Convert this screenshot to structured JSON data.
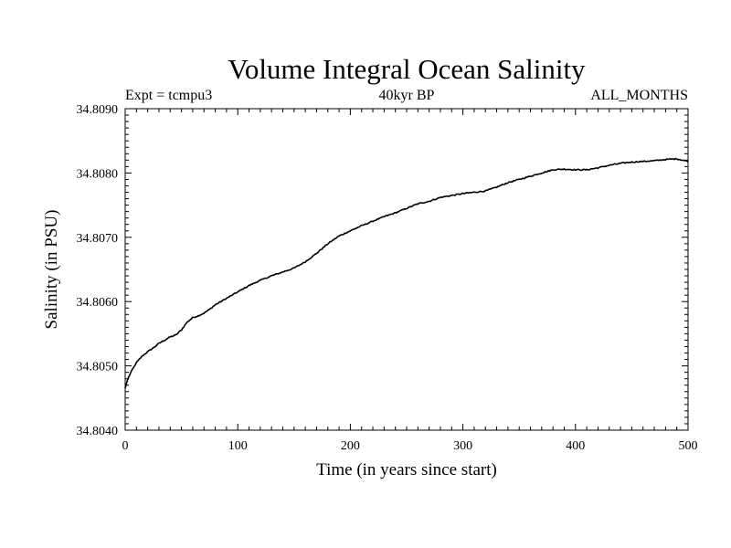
{
  "chart_data": {
    "type": "line",
    "title": "Volume Integral Ocean Salinity",
    "subtitle_left": "Expt = tcmpu3",
    "subtitle_center": "40kyr BP",
    "subtitle_right": "ALL_MONTHS",
    "xlabel": "Time (in years since start)",
    "ylabel": "Salinity (in PSU)",
    "xlim": [
      0,
      500
    ],
    "ylim": [
      34.804,
      34.809
    ],
    "x_ticks": [
      0,
      100,
      200,
      300,
      400,
      500
    ],
    "x_tick_labels": [
      "0",
      "100",
      "200",
      "300",
      "400",
      "500"
    ],
    "y_ticks": [
      34.804,
      34.805,
      34.806,
      34.807,
      34.808,
      34.809
    ],
    "y_tick_labels": [
      "34.8040",
      "34.8050",
      "34.8060",
      "34.8070",
      "34.8080",
      "34.8090"
    ],
    "grid": false,
    "line_color": "#000000",
    "series": [
      {
        "x": [
          0,
          2,
          5,
          10,
          15,
          20,
          25,
          30,
          35,
          40,
          45,
          50,
          55,
          60,
          65,
          70,
          75,
          80,
          90,
          100,
          110,
          120,
          130,
          140,
          150,
          160,
          170,
          180,
          190,
          200,
          210,
          220,
          230,
          240,
          250,
          260,
          270,
          280,
          290,
          300,
          310,
          320,
          330,
          340,
          350,
          360,
          370,
          380,
          390,
          400,
          410,
          420,
          430,
          440,
          450,
          460,
          470,
          480,
          490,
          500
        ],
        "y": [
          34.80465,
          34.80478,
          34.8049,
          34.80505,
          34.80515,
          34.80522,
          34.80528,
          34.80535,
          34.8054,
          34.80545,
          34.80548,
          34.80556,
          34.80568,
          34.80575,
          34.80578,
          34.80582,
          34.80588,
          34.80595,
          34.80605,
          34.80615,
          34.80625,
          34.80633,
          34.8064,
          34.80646,
          34.80652,
          34.80662,
          34.80675,
          34.8069,
          34.80702,
          34.8071,
          34.80718,
          34.80725,
          34.80732,
          34.80738,
          34.80745,
          34.80752,
          34.80756,
          34.80762,
          34.80765,
          34.80768,
          34.8077,
          34.80772,
          34.80778,
          34.80785,
          34.8079,
          34.80795,
          34.808,
          34.80805,
          34.80806,
          34.80805,
          34.80805,
          34.80808,
          34.80812,
          34.80815,
          34.80817,
          34.80818,
          34.80819,
          34.80821,
          34.80822,
          34.80818
        ]
      }
    ]
  }
}
